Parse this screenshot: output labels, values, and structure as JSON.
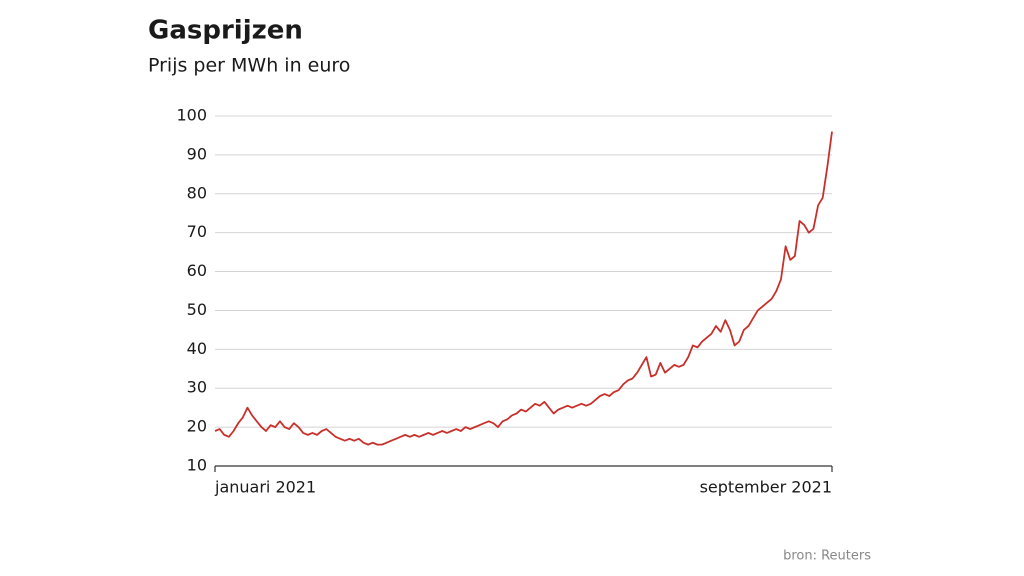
{
  "chart_data": {
    "type": "line",
    "title": "Gasprijzen",
    "subtitle": "Prijs per MWh in euro",
    "source": "bron: Reuters",
    "color": "#c8312b",
    "grid": true,
    "ylim": [
      10,
      100
    ],
    "yticks": [
      10,
      20,
      30,
      40,
      50,
      60,
      70,
      80,
      90,
      100
    ],
    "categories": [
      "januari 2021",
      null,
      null,
      null,
      null,
      null,
      null,
      null,
      null,
      null,
      null,
      null,
      null,
      null,
      null,
      null,
      null,
      null,
      null,
      null,
      null,
      null,
      null,
      null,
      null,
      null,
      null,
      null,
      null,
      null,
      null,
      null,
      null,
      null,
      null,
      null,
      null,
      null,
      null,
      null,
      null,
      null,
      null,
      null,
      null,
      null,
      null,
      null,
      null,
      null,
      null,
      null,
      null,
      null,
      null,
      null,
      null,
      null,
      null,
      null,
      null,
      null,
      null,
      null,
      null,
      null,
      null,
      null,
      null,
      null,
      null,
      null,
      null,
      null,
      null,
      null,
      null,
      null,
      null,
      null,
      null,
      null,
      null,
      null,
      null,
      null,
      null,
      null,
      null,
      null,
      null,
      null,
      null,
      null,
      null,
      null,
      null,
      null,
      null,
      null,
      null,
      null,
      null,
      null,
      null,
      null,
      null,
      null,
      null,
      null,
      null,
      null,
      null,
      null,
      null,
      null,
      null,
      null,
      null,
      null,
      null,
      null,
      null,
      null,
      null,
      null,
      null,
      null,
      null,
      null,
      null,
      null,
      null,
      "september 2021"
    ],
    "values": [
      19,
      19.5,
      18,
      17.5,
      19,
      21,
      22.5,
      25,
      23,
      21.5,
      20,
      19,
      20.5,
      20,
      21.5,
      20,
      19.5,
      21,
      20,
      18.5,
      18,
      18.5,
      18,
      19,
      19.5,
      18.5,
      17.5,
      17,
      16.5,
      17,
      16.5,
      17,
      16,
      15.5,
      16,
      15.5,
      15.5,
      16,
      16.5,
      17,
      17.5,
      18,
      17.5,
      18,
      17.5,
      18,
      18.5,
      18,
      18.5,
      19,
      18.5,
      19,
      19.5,
      19,
      20,
      19.5,
      20,
      20.5,
      21,
      21.5,
      21,
      20,
      21.5,
      22,
      23,
      23.5,
      24.5,
      24,
      25,
      26,
      25.5,
      26.5,
      25,
      23.5,
      24.5,
      25,
      25.5,
      25,
      25.5,
      26,
      25.5,
      26,
      27,
      28,
      28.5,
      28,
      29,
      29.5,
      31,
      32,
      32.5,
      34,
      36,
      38,
      33,
      33.5,
      36.5,
      34,
      35,
      36,
      35.5,
      36,
      38,
      41,
      40.5,
      42,
      43,
      44,
      46,
      44.5,
      47.5,
      45,
      41,
      42,
      45,
      46,
      48,
      50,
      51,
      52,
      53,
      55,
      58,
      66.5,
      63,
      64,
      73,
      72,
      70,
      71,
      77,
      79,
      87,
      96
    ]
  }
}
